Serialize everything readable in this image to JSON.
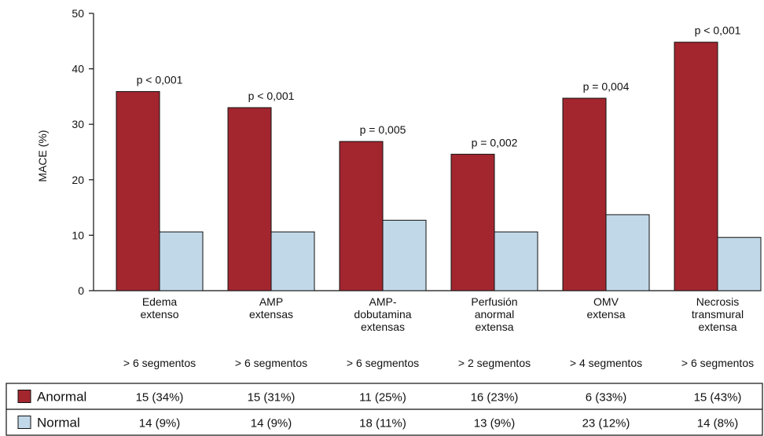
{
  "chart_data": {
    "type": "bar",
    "ylabel": "MACE (%)",
    "ylim": [
      0,
      50
    ],
    "yticks": [
      0,
      10,
      20,
      30,
      40,
      50
    ],
    "grid": false,
    "categories": [
      [
        "Edema",
        "extenso"
      ],
      [
        "AMP",
        "extensas"
      ],
      [
        "AMP-",
        "dobutamina",
        "extensas"
      ],
      [
        "Perfusión",
        "anormal",
        "extensa"
      ],
      [
        "OMV",
        "extensa"
      ],
      [
        "Necrosis",
        "transmural",
        "extensa"
      ]
    ],
    "criteria": [
      "> 6 segmentos",
      "> 6 segmentos",
      "> 6 segmentos",
      "> 2 segmentos",
      "> 4 segmentos",
      "> 6 segmentos"
    ],
    "p_values": [
      "p < 0,001",
      "p < 0,001",
      "p = 0,005",
      "p = 0,002",
      "p = 0,004",
      "p < 0,001"
    ],
    "series": [
      {
        "name": "Anormal",
        "color": "#a3262f",
        "values": [
          35.9,
          33.0,
          26.9,
          24.6,
          34.7,
          44.8
        ]
      },
      {
        "name": "Normal",
        "color": "#c1d8e8",
        "values": [
          10.6,
          10.6,
          12.7,
          10.6,
          13.7,
          9.6
        ]
      }
    ],
    "table": [
      {
        "label": "Anormal",
        "color": "#a3262f",
        "cells": [
          "15 (34%)",
          "15 (31%)",
          "11 (25%)",
          "16 (23%)",
          "6 (33%)",
          "15 (43%)"
        ]
      },
      {
        "label": "Normal",
        "color": "#c1d8e8",
        "cells": [
          "14   (9%)",
          "14   (9%)",
          "18 (11%)",
          "13   (9%)",
          "23 (12%)",
          "14   (8%)"
        ]
      }
    ]
  }
}
